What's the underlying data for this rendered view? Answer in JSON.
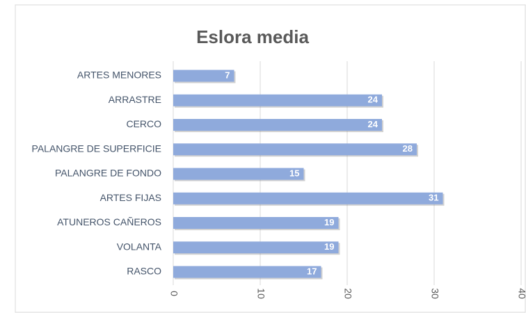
{
  "chart_data": {
    "type": "bar",
    "orientation": "horizontal",
    "title": "Eslora media",
    "categories": [
      "ARTES MENORES",
      "ARRASTRE",
      "CERCO",
      "PALANGRE DE SUPERFICIE",
      "PALANGRE DE FONDO",
      "ARTES FIJAS",
      "ATUNEROS CAÑEROS",
      "VOLANTA",
      "RASCO"
    ],
    "values": [
      7,
      24,
      24,
      28,
      15,
      31,
      19,
      19,
      17
    ],
    "color": "#8faadc",
    "xlim": [
      0,
      40
    ],
    "xticks": [
      0,
      10,
      20,
      30,
      40
    ],
    "grid": true
  }
}
